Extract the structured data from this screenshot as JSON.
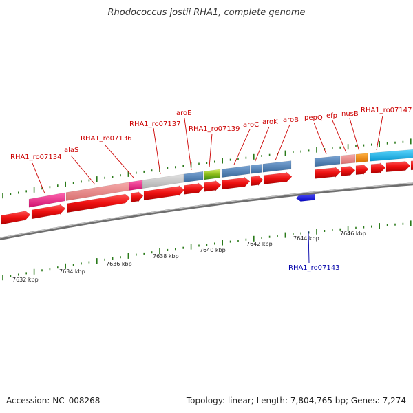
{
  "title": "Rhodococcus jostii RHA1, complete genome",
  "footer": {
    "accession": "Accession: NC_008268",
    "summary": "Topology: linear; Length: 7,804,765 bp; Genes: 7,274"
  },
  "colors": {
    "label_red": "#cc0000",
    "label_blue": "#0000aa",
    "tick_green": "#2a7a1a",
    "cds_red": "#ee1111",
    "backbone": "#7a7a7a",
    "pink": "#ee2288",
    "salmon": "#ee8888",
    "grey": "#c8c8c8",
    "steel_blue": "#4a7ab0",
    "lime": "#a8d020",
    "orange": "#f08a10",
    "cyan": "#10b8ee",
    "blue": "#1a1aee"
  },
  "scale": {
    "unit": "kbp",
    "ticks": [
      7632,
      7634,
      7636,
      7638,
      7640,
      7642,
      7644,
      7646
    ]
  },
  "gene_labels": [
    {
      "text": "RHA1_ro07134",
      "strand": "plus"
    },
    {
      "text": "alaS",
      "strand": "plus"
    },
    {
      "text": "RHA1_ro07136",
      "strand": "plus"
    },
    {
      "text": "RHA1_ro07137",
      "strand": "plus"
    },
    {
      "text": "aroE",
      "strand": "plus"
    },
    {
      "text": "RHA1_ro07139",
      "strand": "plus"
    },
    {
      "text": "aroC",
      "strand": "plus"
    },
    {
      "text": "aroK",
      "strand": "plus"
    },
    {
      "text": "aroB",
      "strand": "plus"
    },
    {
      "text": "pepQ",
      "strand": "plus"
    },
    {
      "text": "efp",
      "strand": "plus"
    },
    {
      "text": "nusB",
      "strand": "plus"
    },
    {
      "text": "RHA1_ro07147",
      "strand": "plus"
    },
    {
      "text": "RHA1_ro07143",
      "strand": "minus"
    }
  ]
}
